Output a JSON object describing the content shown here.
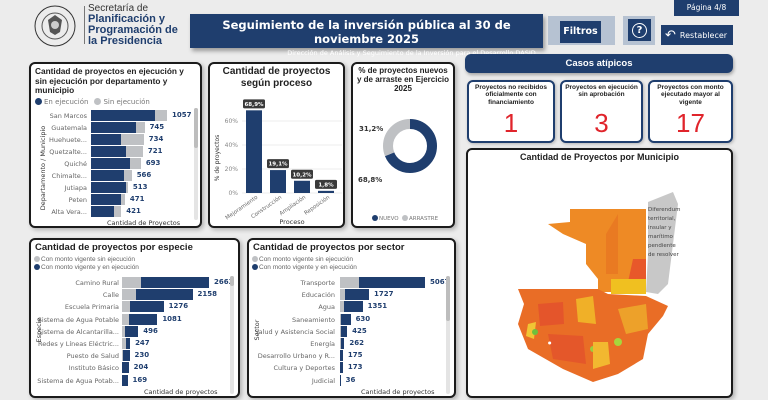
{
  "header": {
    "org_line1": "Secretaría de",
    "org_line2": "Planificación y",
    "org_line3": "Programación de",
    "org_line4": "la Presidencia",
    "seal_text": "GOBIERNO DE LA REPÚBLICA GUATEMALA",
    "title": "Seguimiento de la inversión pública al 30 de noviembre 2025",
    "subtitle": "Dirección de Análisis y Seguimiento de la Inversión para el Desarrollo DASID",
    "filters_label": "Filtros",
    "help_label": "?",
    "reset_label": "Restablecer",
    "page_label": "Página 4/8"
  },
  "colors": {
    "navy": "#1f3e6e",
    "gray": "#bfc1c4",
    "red": "#e0242b"
  },
  "casos": {
    "title": "Casos atípicos",
    "cards": [
      {
        "label": "Proyectos no recibidos oficialmente con financiamiento",
        "value": "1"
      },
      {
        "label": "Proyectos en ejecución sin aprobación",
        "value": "3"
      },
      {
        "label": "Proyectos con monto ejecutado mayor al vigente",
        "value": "17"
      }
    ]
  },
  "map": {
    "title": "Cantidad de Proyectos por Municipio",
    "note": "Diferendum territorial, insular y marítimo pendiente de resolver"
  },
  "chart_data": [
    {
      "type": "bar",
      "orientation": "horizontal-stacked",
      "title": "Cantidad de proyectos en ejecución y sin ejecución por departamento y municipio",
      "legend": [
        "En ejecución",
        "Sin ejecución"
      ],
      "xlabel": "Cantidad de Proyectos",
      "ylabel": "Departamento / Municipio",
      "categories": [
        "San Marcos",
        "Guatemala",
        "Huehuete...",
        "Quetzalte...",
        "Quiché",
        "Chimalte...",
        "Jutiapa",
        "Peten",
        "Alta Vera..."
      ],
      "totals": [
        1057,
        745,
        734,
        721,
        693,
        566,
        513,
        471,
        421
      ],
      "series": [
        {
          "name": "En ejecución",
          "values": [
            890,
            626,
            417,
            487,
            542,
            459,
            480,
            417,
            320
          ]
        },
        {
          "name": "Sin ejecución",
          "values": [
            167,
            119,
            317,
            234,
            151,
            107,
            33,
            54,
            101
          ]
        }
      ]
    },
    {
      "type": "bar",
      "title": "Cantidad de proyectos según proceso",
      "xlabel": "Proceso",
      "ylabel": "% de proyectos",
      "categories": [
        "Mejoramiento",
        "Construcción",
        "Ampliación",
        "Reposición"
      ],
      "values": [
        68.9,
        19.1,
        10.2,
        1.8
      ],
      "data_labels": [
        "68,9%",
        "19,1%",
        "10,2%",
        "1,8%"
      ],
      "ylim": [
        0,
        70
      ],
      "yticks": [
        "0%",
        "20%",
        "40%",
        "60%"
      ],
      "grid": true
    },
    {
      "type": "pie",
      "donut": true,
      "title": "% de proyectos nuevos y de arraste en Ejercicio 2025",
      "categories": [
        "NUEVO",
        "ARRASTRE"
      ],
      "values": [
        68.8,
        31.2
      ],
      "data_labels": [
        "68,8%",
        "31,2%"
      ],
      "legend": "bottom"
    },
    {
      "type": "bar",
      "orientation": "horizontal-stacked",
      "title": "Cantidad de proyectos por especie",
      "legend": [
        "Con monto vigente sin ejecución",
        "Con monto vigente y en ejecución"
      ],
      "xlabel": "Cantidad de proyectos",
      "ylabel": "Especie",
      "categories": [
        "Camino Rural",
        "Calle",
        "Escuela Primaria",
        "Sistema de Agua Potable",
        "Sistema de Alcantarilla...",
        "Redes y Líneas Eléctric...",
        "Puesto de Salud",
        "Instituto Básico",
        "Sistema de Agua Potab..."
      ],
      "totals": [
        2663,
        2158,
        1276,
        1081,
        496,
        247,
        230,
        204,
        169
      ],
      "series": [
        {
          "name": "Con monto vigente sin ejecución",
          "values": [
            580,
            430,
            245,
            215,
            90,
            120,
            20,
            15,
            10
          ]
        },
        {
          "name": "Con monto vigente y en ejecución",
          "values": [
            2083,
            1728,
            1031,
            866,
            406,
            127,
            210,
            189,
            159
          ]
        }
      ]
    },
    {
      "type": "bar",
      "orientation": "horizontal-stacked",
      "title": "Cantidad de proyectos por sector",
      "legend": [
        "Con monto vigente sin ejecución",
        "Con monto vigente y en ejecución"
      ],
      "xlabel": "Cantidad de proyectos",
      "ylabel": "Sector",
      "categories": [
        "Transporte",
        "Educación",
        "Agua",
        "Saneamiento",
        "Salud y Asistencia Social",
        "Energía",
        "Desarrollo Urbano y R...",
        "Cultura y Deportes",
        "Judicial"
      ],
      "totals": [
        5067,
        1727,
        1351,
        630,
        425,
        262,
        175,
        173,
        36
      ],
      "series": [
        {
          "name": "Con monto vigente sin ejecución",
          "values": [
            1130,
            300,
            240,
            40,
            30,
            40,
            10,
            10,
            10
          ]
        },
        {
          "name": "Con monto vigente y en ejecución",
          "values": [
            3937,
            1427,
            1111,
            590,
            395,
            222,
            165,
            163,
            26
          ]
        }
      ]
    }
  ]
}
